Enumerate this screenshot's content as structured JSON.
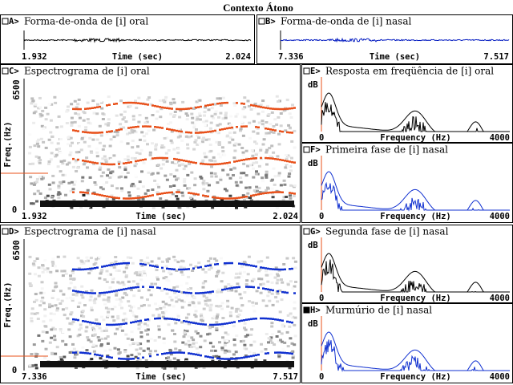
{
  "title": "Contexto Átono",
  "panels": [
    {
      "id": "A>",
      "title": "Forma-de-onda de [i] oral",
      "x_start": "1.932",
      "x_label": "Time (sec)",
      "x_end": "2.024"
    },
    {
      "id": "B>",
      "title": "Forma-de-onda de [i] nasal",
      "x_start": "7.336",
      "x_label": "Time (sec)",
      "x_end": "7.517"
    },
    {
      "id": "C>",
      "title": "Espectrograma de [i] oral",
      "y_label": "Freq.(Hz)",
      "y_top": "6500",
      "y_bottom": "0",
      "x_start": "1.932",
      "x_label": "Time (sec)",
      "x_end": "2.024"
    },
    {
      "id": "D>",
      "title": "Espectrograma de [i] nasal",
      "y_label": "Freq.(Hz)",
      "y_top": "6500",
      "y_bottom": "0",
      "x_start": "7.336",
      "x_label": "Time (sec)",
      "x_end": "7.517"
    },
    {
      "id": "E>",
      "title": "Resposta em freqüência de [i] oral",
      "y_label": "dB",
      "x_start": "0",
      "x_label": "Frequency (Hz)",
      "x_end": "4000"
    },
    {
      "id": "F>",
      "title": "Primeira fase de [i] nasal",
      "y_label": "dB",
      "x_start": "0",
      "x_label": "Frequency (Hz)",
      "x_end": "4000"
    },
    {
      "id": "G>",
      "title": "Segunda fase de [i] nasal",
      "y_label": "dB",
      "x_start": "0",
      "x_label": "Frequency (Hz)",
      "x_end": "4000"
    },
    {
      "id": "H>",
      "title": "Murmúrio de [i] nasal",
      "y_label": "dB",
      "x_start": "0",
      "x_label": "Frequency (Hz)",
      "x_end": "4000"
    }
  ]
}
